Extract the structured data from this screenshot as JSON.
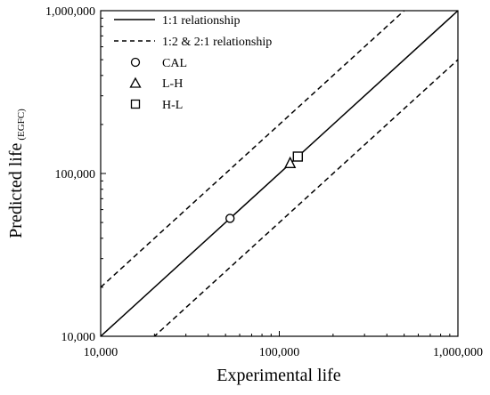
{
  "chart_data": {
    "type": "scatter",
    "x_scale": "log",
    "y_scale": "log",
    "xlim": [
      10000,
      1000000
    ],
    "ylim": [
      10000,
      1000000
    ],
    "x_ticks": [
      10000,
      100000,
      1000000
    ],
    "y_ticks": [
      10000,
      100000,
      1000000
    ],
    "x_tick_labels": [
      "10,000",
      "100,000",
      "1,000,000"
    ],
    "y_tick_labels": [
      "10,000",
      "100,000",
      "1,000,000"
    ],
    "xlabel": "Experimental life",
    "ylabel": "Predicted life",
    "ylabel_subscript": "(EGFC)",
    "grid": false,
    "legend_position": "top-left",
    "lines": [
      {
        "name": "1:1 relationship",
        "style": "solid",
        "ratio": 1
      },
      {
        "name": "1:2 & 2:1 relationship",
        "style": "dashed",
        "ratio": 2
      },
      {
        "name": "",
        "style": "dashed",
        "ratio": 0.5
      }
    ],
    "series": [
      {
        "name": "CAL",
        "marker": "circle",
        "x": [
          53000
        ],
        "y": [
          53000
        ]
      },
      {
        "name": "L-H",
        "marker": "triangle",
        "x": [
          115000
        ],
        "y": [
          115000
        ]
      },
      {
        "name": "H-L",
        "marker": "square",
        "x": [
          127000
        ],
        "y": [
          127000
        ]
      }
    ]
  }
}
